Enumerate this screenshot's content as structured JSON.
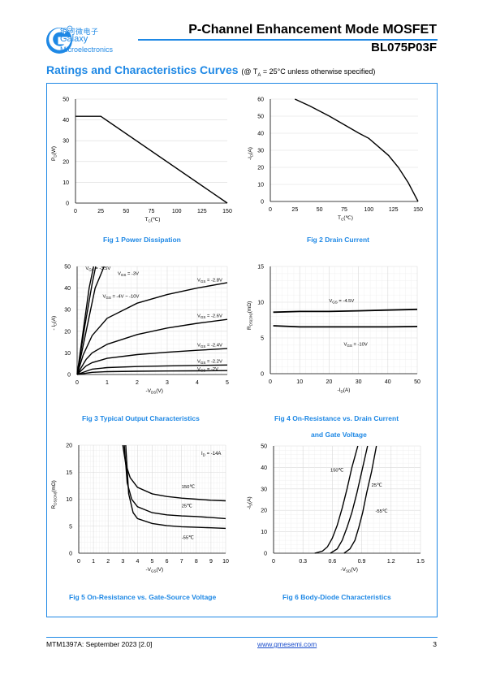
{
  "header": {
    "brand_cn": "银河微电子",
    "brand_en": "Galaxy",
    "brand_sub": "Microelectronics",
    "registered": "®",
    "doc_title": "P-Channel Enhancement Mode MOSFET",
    "part_no": "BL075P03F"
  },
  "section": {
    "title": "Ratings and Characteristics Curves",
    "condition_pre": "(@ T",
    "condition_sub": "A",
    "condition_post": " = 25°C unless otherwise specified)"
  },
  "captions": {
    "fig1": "Fig 1    Power Dissipation",
    "fig2": "Fig 2    Drain Current",
    "fig3": "Fig 3    Typical Output Characteristics",
    "fig4_a": "Fig 4    On-Resistance vs. Drain Current",
    "fig4_b": "and Gate Voltage",
    "fig5": "Fig 5    On-Resistance vs. Gate-Source Voltage",
    "fig6": "Fig 6    Body-Diode Characteristics"
  },
  "footer": {
    "doc_code": "MTM1397A: September 2023 [2.0]",
    "link": "www.gmesemi.com",
    "page": "3"
  },
  "colors": {
    "accent": "#1e88e5",
    "grid": "#d9d9d9"
  },
  "chart_data": [
    {
      "id": "fig1",
      "type": "line",
      "xlabel": "T",
      "xlabel_sub": "C",
      "xlabel_unit": "(℃)",
      "ylabel": "P",
      "ylabel_sub": "D",
      "ylabel_unit": "(W)",
      "xlim": [
        0,
        150
      ],
      "ylim": [
        0,
        50
      ],
      "xticks": [
        "0",
        "25",
        "50",
        "75",
        "100",
        "125",
        "150"
      ],
      "yticks": [
        "0",
        "10",
        "20",
        "30",
        "40",
        "50"
      ],
      "grid": "horizontal",
      "series": [
        {
          "x": [
            0,
            25,
            150
          ],
          "y": [
            41.7,
            41.7,
            0
          ]
        }
      ]
    },
    {
      "id": "fig2",
      "type": "line",
      "xlabel": "T",
      "xlabel_sub": "C",
      "xlabel_unit": "(℃)",
      "ylabel": "-I",
      "ylabel_sub": "D",
      "ylabel_unit": "(A)",
      "xlim": [
        0,
        150
      ],
      "ylim": [
        0,
        60
      ],
      "xticks": [
        "0",
        "25",
        "50",
        "75",
        "100",
        "125",
        "150"
      ],
      "yticks": [
        "0",
        "10",
        "20",
        "30",
        "40",
        "50",
        "60"
      ],
      "grid": "horizontal",
      "series": [
        {
          "x": [
            25,
            40,
            60,
            75,
            90,
            100,
            110,
            120,
            130,
            140,
            150
          ],
          "y": [
            60,
            56,
            50,
            45,
            40,
            37,
            32,
            27,
            20,
            11,
            0
          ]
        }
      ]
    },
    {
      "id": "fig3",
      "type": "line",
      "xlabel": "-V",
      "xlabel_sub": "DS",
      "xlabel_unit": "(V)",
      "ylabel": "- I",
      "ylabel_sub": "D",
      "ylabel_unit": "(A)",
      "xlim": [
        0,
        5
      ],
      "ylim": [
        0,
        50
      ],
      "xticks": [
        "0",
        "1",
        "2",
        "3",
        "4",
        "5"
      ],
      "yticks": [
        "0",
        "10",
        "20",
        "30",
        "40",
        "50"
      ],
      "grid": "both",
      "series": [
        {
          "name": "V  = -2V",
          "sub": "GS",
          "x": [
            0,
            0.5,
            1,
            2,
            3,
            4,
            5
          ],
          "y": [
            0,
            1.0,
            1.3,
            1.5,
            1.6,
            1.7,
            1.8
          ],
          "lx": 4.0,
          "ly": 1.8
        },
        {
          "name": "V  = -2.2V",
          "sub": "GS",
          "x": [
            0,
            0.5,
            1,
            2,
            3,
            4,
            5
          ],
          "y": [
            0,
            2.5,
            3.2,
            3.7,
            4.0,
            4.2,
            4.4
          ],
          "lx": 4.0,
          "ly": 5.5
        },
        {
          "name": "V  = -2.4V",
          "sub": "GS",
          "x": [
            0,
            0.3,
            0.5,
            1,
            2,
            3,
            4,
            5
          ],
          "y": [
            0,
            4,
            5.5,
            7.5,
            9.2,
            10.3,
            11.2,
            12
          ],
          "lx": 4.0,
          "ly": 13
        },
        {
          "name": "V  = -2.6V",
          "sub": "GS",
          "x": [
            0,
            0.3,
            0.5,
            1,
            2,
            3,
            4,
            5
          ],
          "y": [
            0,
            7,
            10,
            14,
            18.5,
            21.5,
            23.7,
            25.5
          ],
          "lx": 4.0,
          "ly": 26.5
        },
        {
          "name": "V  = -2.8V",
          "sub": "GS",
          "x": [
            0,
            0.2,
            0.5,
            1,
            2,
            3,
            4,
            5
          ],
          "y": [
            0,
            9,
            18,
            26,
            33,
            37,
            40,
            42.5
          ],
          "lx": 4.0,
          "ly": 43
        },
        {
          "name": "V  = -4V ~ -10V",
          "sub": "GS",
          "x": [
            0,
            0.3,
            0.6,
            0.9
          ],
          "y": [
            0,
            20,
            40,
            50
          ],
          "lx": 0.85,
          "ly": 35.5
        },
        {
          "name": "V  = -3V",
          "sub": "GS",
          "x": [
            0,
            0.25,
            0.5,
            0.62
          ],
          "y": [
            0,
            22,
            42,
            50
          ],
          "lx": 1.35,
          "ly": 46
        },
        {
          "name": "V  = -3.5V",
          "sub": "GS",
          "x": [
            0,
            0.2,
            0.4,
            0.55
          ],
          "y": [
            0,
            20,
            40,
            50
          ],
          "lx": 0.28,
          "ly": 48.5
        }
      ]
    },
    {
      "id": "fig4",
      "type": "line",
      "xlabel": "-I",
      "xlabel_sub": "D",
      "xlabel_unit": "(A)",
      "ylabel": "R",
      "ylabel_sub": "DS(ON)",
      "ylabel_unit": "(mΩ)",
      "xlim": [
        0,
        50
      ],
      "ylim": [
        0,
        15
      ],
      "xticks": [
        "0",
        "10",
        "20",
        "30",
        "40",
        "50"
      ],
      "yticks": [
        "0",
        "5",
        "10",
        "15"
      ],
      "grid": "both",
      "series": [
        {
          "name": "V  = -4.5V",
          "sub": "GS",
          "x": [
            1,
            10,
            20,
            30,
            40,
            50
          ],
          "y": [
            8.6,
            8.7,
            8.7,
            8.8,
            8.9,
            9.0
          ],
          "lx": 20,
          "ly": 10
        },
        {
          "name": "V  = -10V",
          "sub": "GS",
          "x": [
            1,
            10,
            20,
            30,
            40,
            50
          ],
          "y": [
            6.7,
            6.55,
            6.55,
            6.55,
            6.55,
            6.6
          ],
          "lx": 25,
          "ly": 3.9
        }
      ]
    },
    {
      "id": "fig5",
      "type": "line",
      "xlabel": "-V",
      "xlabel_sub": "GS",
      "xlabel_unit": "(V)",
      "ylabel": "R",
      "ylabel_sub": "DS(ON)",
      "ylabel_unit": "(mΩ)",
      "xlim": [
        0,
        10
      ],
      "ylim": [
        0,
        20
      ],
      "xticks": [
        "0",
        "1",
        "2",
        "3",
        "4",
        "5",
        "6",
        "7",
        "8",
        "9",
        "10"
      ],
      "yticks": [
        "0",
        "5",
        "10",
        "15",
        "20"
      ],
      "grid": "both",
      "annotation": "I  = -14A",
      "annotation_sub": "D",
      "series": [
        {
          "name": "150℃",
          "x": [
            3,
            3.2,
            3.5,
            4,
            5,
            6,
            7,
            8,
            9,
            10
          ],
          "y": [
            20,
            16.5,
            14,
            12.2,
            11,
            10.5,
            10.2,
            10,
            9.8,
            9.7
          ],
          "lx": 7,
          "ly": 12
        },
        {
          "name": "25℃",
          "x": [
            3.1,
            3.3,
            3.6,
            4,
            5,
            6,
            7,
            8,
            9,
            10
          ],
          "y": [
            20,
            13,
            10,
            8.6,
            7.5,
            7.1,
            6.9,
            6.8,
            6.6,
            6.4
          ],
          "lx": 7,
          "ly": 8.5
        },
        {
          "name": "-55℃",
          "x": [
            3.2,
            3.4,
            3.7,
            4,
            5,
            6,
            7,
            8,
            9,
            10
          ],
          "y": [
            20,
            11,
            7.5,
            6.4,
            5.5,
            5.1,
            4.9,
            4.8,
            4.7,
            4.6
          ],
          "lx": 7,
          "ly": 2.6
        }
      ]
    },
    {
      "id": "fig6",
      "type": "line",
      "xlabel": "-V",
      "xlabel_sub": "SD",
      "xlabel_unit": "(V)",
      "ylabel": "-I",
      "ylabel_sub": "S",
      "ylabel_unit": "(A)",
      "xlim": [
        0,
        1.5
      ],
      "ylim": [
        0,
        50
      ],
      "xticks": [
        "0",
        "0.3",
        "0.6",
        "0.9",
        "1.2",
        "1.5"
      ],
      "yticks": [
        "0",
        "10",
        "20",
        "30",
        "40",
        "50"
      ],
      "grid": "both",
      "series": [
        {
          "name": "150℃",
          "x": [
            0.42,
            0.5,
            0.55,
            0.6,
            0.65,
            0.7,
            0.75,
            0.8,
            0.86
          ],
          "y": [
            0,
            1,
            3,
            7,
            13,
            21,
            30,
            40,
            50
          ],
          "lx": 0.58,
          "ly": 38
        },
        {
          "name": "25℃",
          "x": [
            0.58,
            0.65,
            0.7,
            0.75,
            0.8,
            0.85,
            0.9,
            0.96
          ],
          "y": [
            0,
            2,
            6,
            12,
            19,
            28,
            38,
            50
          ],
          "lx": 1.0,
          "ly": 31
        },
        {
          "name": "-55℃",
          "x": [
            0.72,
            0.78,
            0.83,
            0.87,
            0.91,
            0.95,
            1.0,
            1.05
          ],
          "y": [
            0,
            2,
            6,
            12,
            19,
            28,
            38,
            50
          ],
          "lx": 1.04,
          "ly": 19
        }
      ]
    }
  ]
}
